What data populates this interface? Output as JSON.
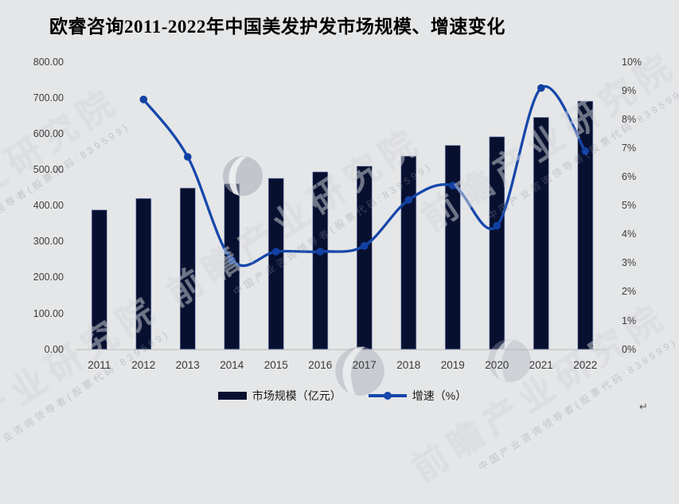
{
  "title": "欧睿咨询2011-2022年中国美发护发市场规模、增速变化",
  "legend": {
    "bar_label": "市场规模（亿元）",
    "line_label": "增速（%）"
  },
  "watermark": {
    "big": "前瞻产业研究院",
    "small": "中国产业咨询领导者(股票代码:839599)"
  },
  "misc": {
    "return_mark": "↵"
  },
  "colors": {
    "background": "#e5e6e7",
    "bar_fill": "#081030",
    "bar_border": "#7d90c0",
    "line": "#1647ab",
    "marker": "#1240a2",
    "axis_text": "#3d3d3d",
    "axis_line": "#c2c2c2",
    "title_text": "#000000"
  },
  "chart_data": {
    "type": "bar",
    "subtype": "bar+line-combo",
    "title": "欧睿咨询2011-2022年中国美发护发市场规模、增速变化",
    "categories": [
      "2011",
      "2012",
      "2013",
      "2014",
      "2015",
      "2016",
      "2017",
      "2018",
      "2019",
      "2020",
      "2021",
      "2022"
    ],
    "series": [
      {
        "name": "市场规模（亿元）",
        "type": "bar",
        "axis": "left",
        "values": [
          388,
          420,
          449,
          461,
          476,
          494,
          510,
          538,
          568,
          592,
          646,
          691
        ]
      },
      {
        "name": "增速（%）",
        "type": "line",
        "axis": "right",
        "values": [
          null,
          8.7,
          6.7,
          3.1,
          3.4,
          3.4,
          3.6,
          5.2,
          5.7,
          4.3,
          9.1,
          6.9
        ]
      }
    ],
    "left_axis": {
      "min": 0,
      "max": 800,
      "step": 100,
      "tick_format": "0.00"
    },
    "right_axis": {
      "min": 0,
      "max": 10,
      "step": 1,
      "tick_format": "0%"
    },
    "grid": false,
    "line_smoothing": true,
    "legend_position": "bottom"
  }
}
